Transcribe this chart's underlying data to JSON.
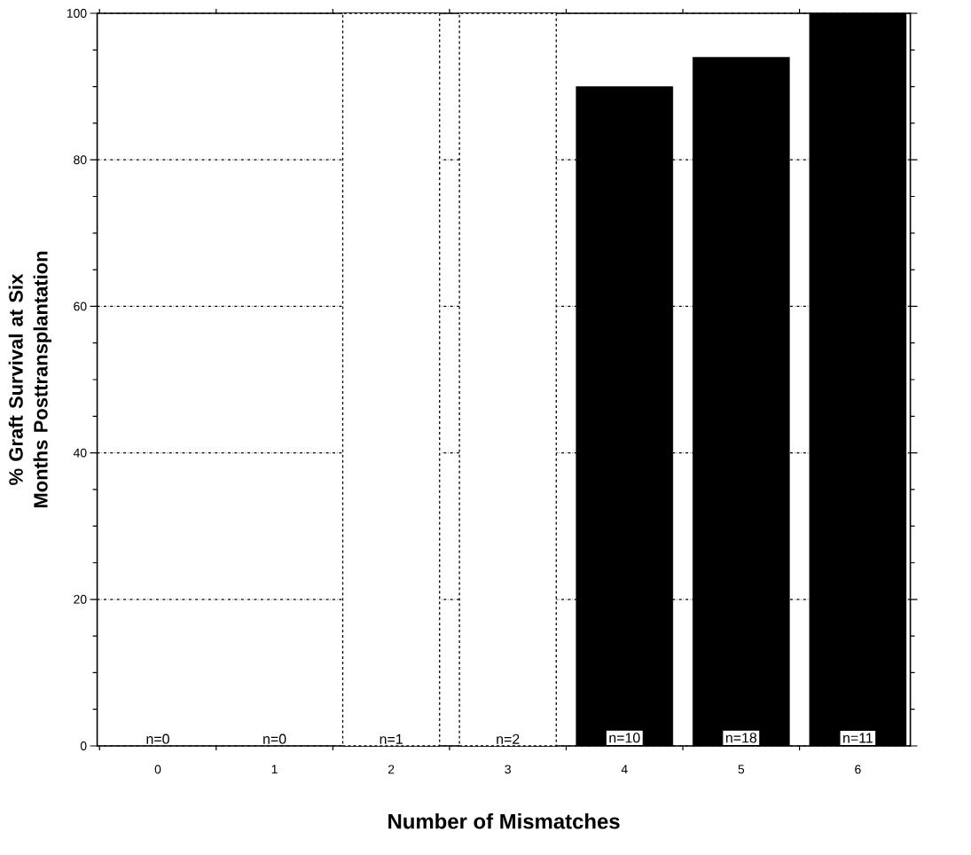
{
  "chart_data": {
    "type": "bar",
    "xlabel": "Number of Mismatches",
    "ylabel": "% Graft Survival at Six Months Posttransplantation",
    "categories": [
      "0",
      "1",
      "2",
      "3",
      "4",
      "5",
      "6"
    ],
    "values": [
      null,
      null,
      100,
      100,
      90,
      94,
      100
    ],
    "colors": [
      "#000000",
      "#000000",
      "#ffffff",
      "#ffffff",
      "#000000",
      "#000000",
      "#000000"
    ],
    "ylim": [
      0,
      100
    ],
    "yticks": [
      0,
      20,
      40,
      60,
      80,
      100
    ],
    "grid": "y",
    "annotations": [
      "n=0",
      "n=0",
      "n=1",
      "n=2",
      "n=10",
      "n=18",
      "n=11"
    ]
  }
}
